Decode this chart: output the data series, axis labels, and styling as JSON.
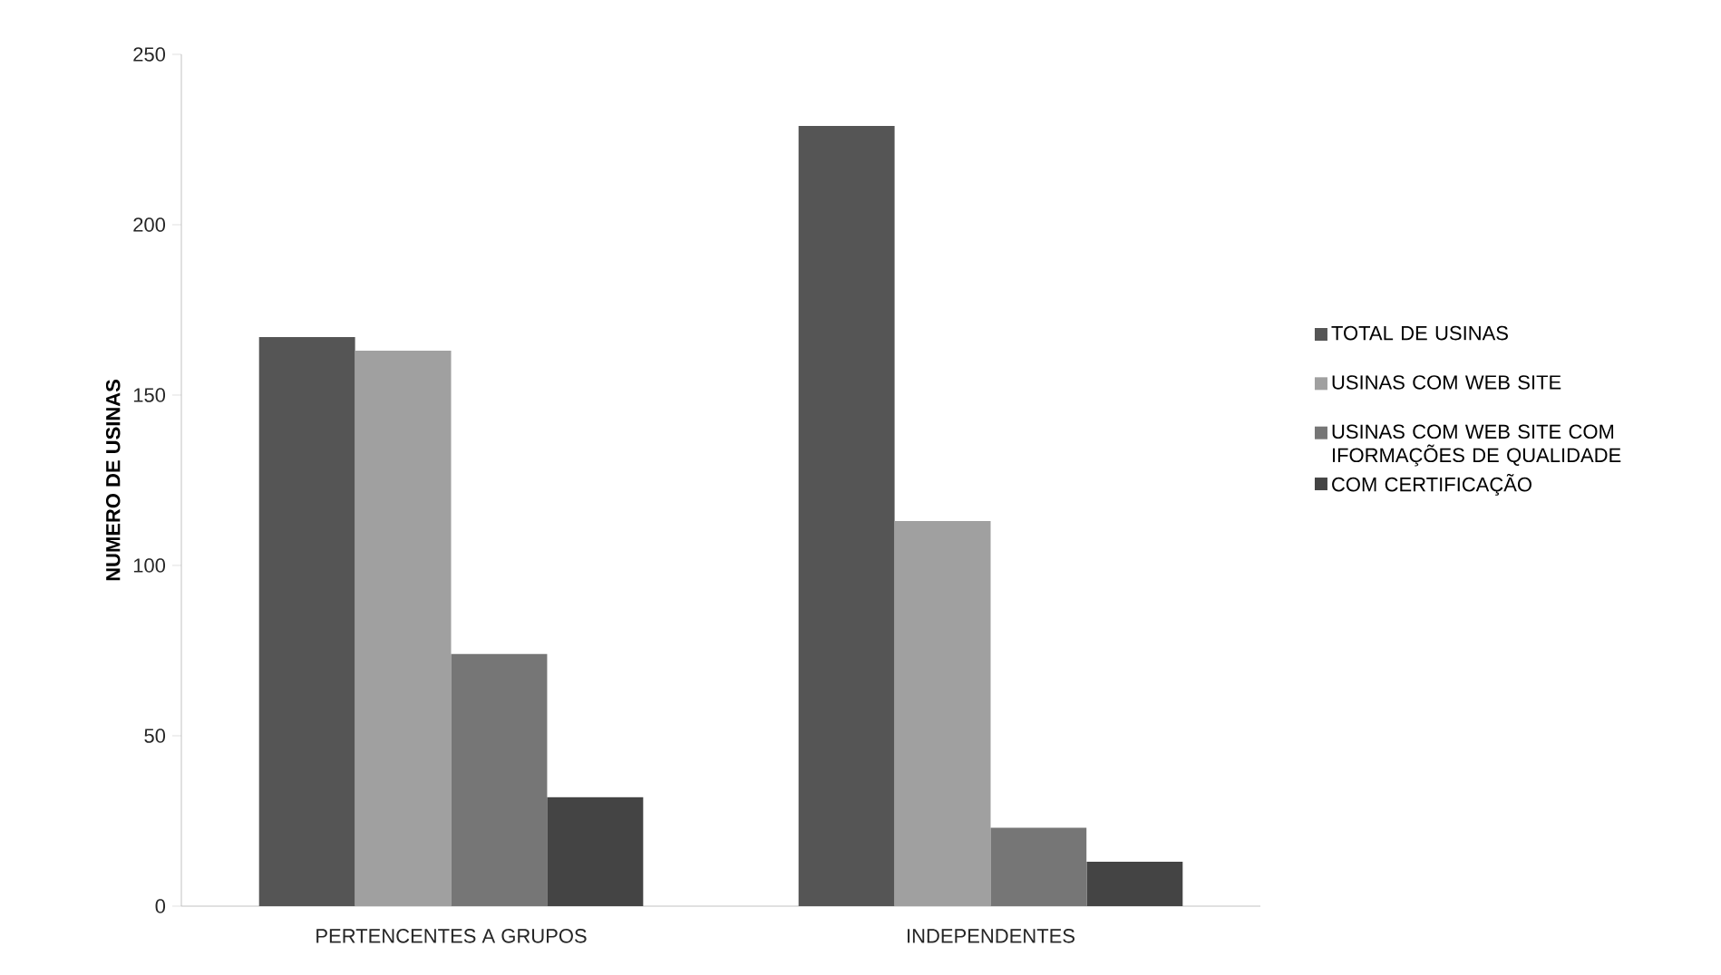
{
  "chart_data": {
    "type": "bar",
    "ylabel": "NUMERO DE USINAS",
    "categories": [
      "PERTENCENTES A GRUPOS",
      "INDEPENDENTES"
    ],
    "series": [
      {
        "name": "TOTAL DE USINAS",
        "color": "#555555",
        "values": [
          167,
          229
        ]
      },
      {
        "name": "USINAS COM WEB SITE",
        "color": "#a0a0a0",
        "values": [
          163,
          113
        ]
      },
      {
        "name": "USINAS COM  WEB SITE COM IFORMAÇÕES DE QUALIDADE",
        "color": "#767676",
        "values": [
          74,
          23
        ]
      },
      {
        "name": "COM CERTIFICAÇÃO",
        "color": "#444444",
        "values": [
          32,
          13
        ]
      }
    ],
    "ylim": [
      0,
      250
    ],
    "yticks": [
      0,
      50,
      100,
      150,
      200,
      250
    ],
    "legend": "right",
    "grid": false
  }
}
